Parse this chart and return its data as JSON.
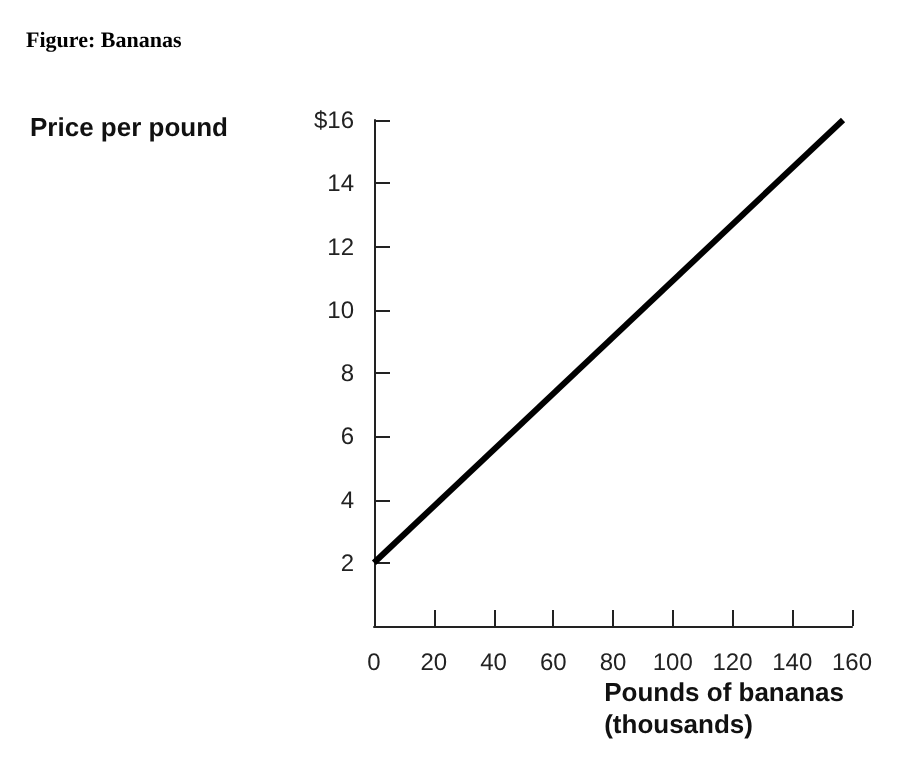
{
  "chart_data": {
    "type": "line",
    "title": "Figure: Bananas",
    "xlabel": "Pounds of bananas\n(thousands)",
    "ylabel": "Price per pound",
    "x": [
      0,
      157
    ],
    "series": [
      {
        "color": "#000000",
        "values": [
          2,
          16
        ]
      }
    ],
    "xlim": [
      0,
      160
    ],
    "xticks": [
      0,
      20,
      40,
      60,
      80,
      100,
      120,
      140,
      160
    ],
    "ylim": [
      0,
      16
    ],
    "yticks": [
      2,
      4,
      6,
      8,
      10,
      12,
      14,
      {
        "value": 16,
        "label": "$16"
      }
    ],
    "grid": false,
    "marker": "none",
    "line_style": "solid"
  }
}
